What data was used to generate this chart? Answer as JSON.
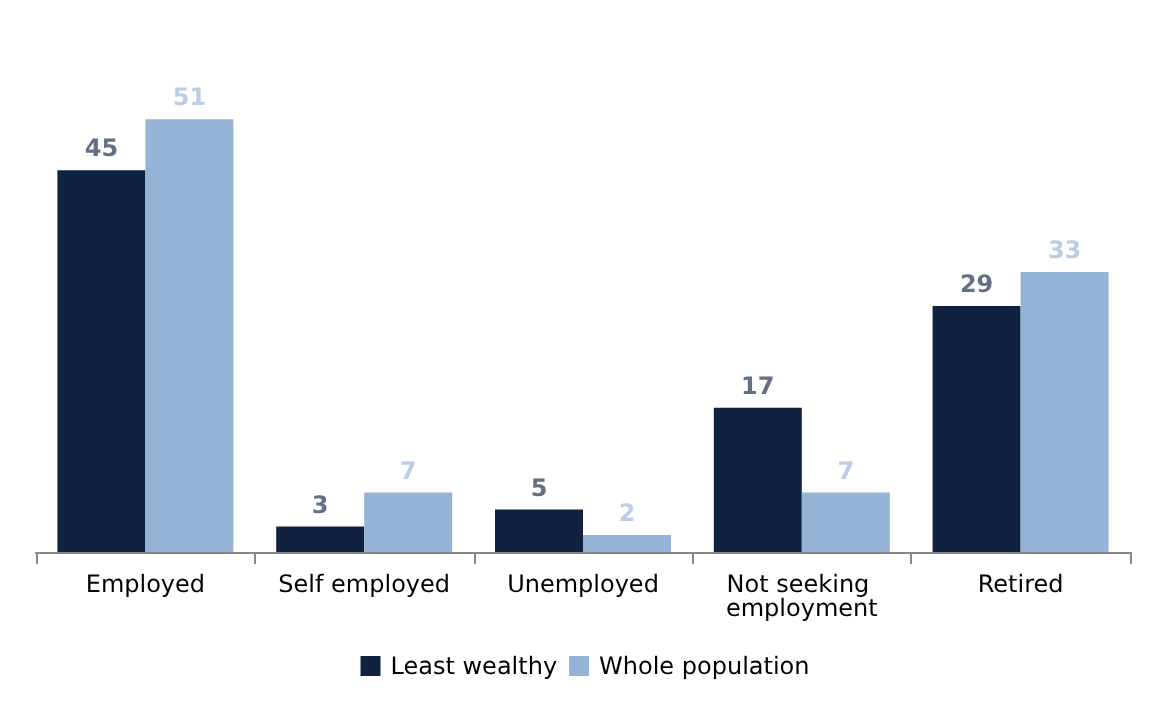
{
  "chart_data": {
    "type": "bar",
    "categories": [
      "Employed",
      "Self employed",
      "Unemployed",
      "Not seeking employment",
      "Retired"
    ],
    "series": [
      {
        "name": "Least wealthy",
        "color": "#10223f",
        "values": [
          45,
          3,
          5,
          17,
          29
        ]
      },
      {
        "name": "Whole population",
        "color": "#95b3d7",
        "values": [
          51,
          7,
          2,
          7,
          33
        ]
      }
    ],
    "data_labels": true,
    "legend": "bottom",
    "grid": false
  }
}
